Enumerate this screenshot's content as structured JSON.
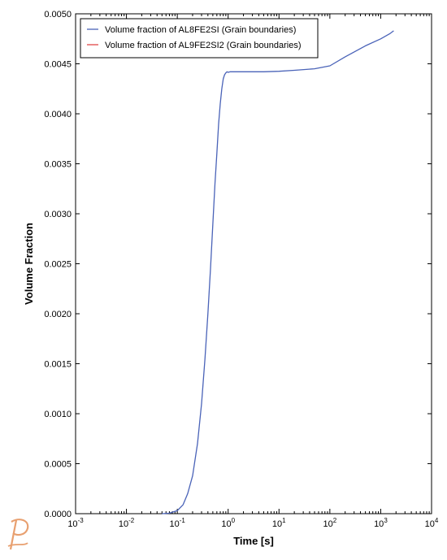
{
  "chart_data": {
    "type": "line",
    "xlabel": "Time [s]",
    "ylabel": "Volume Fraction",
    "xscale": "log",
    "xlim": [
      0.001,
      10000
    ],
    "ylim": [
      0,
      0.005
    ],
    "grid": false,
    "legend_position": "top-left",
    "x_tick_labels": [
      {
        "base": "10",
        "exp": "-3"
      },
      {
        "base": "10",
        "exp": "-2"
      },
      {
        "base": "10",
        "exp": "-1"
      },
      {
        "base": "10",
        "exp": "0"
      },
      {
        "base": "10",
        "exp": "1"
      },
      {
        "base": "10",
        "exp": "2"
      },
      {
        "base": "10",
        "exp": "3"
      },
      {
        "base": "10",
        "exp": "4"
      }
    ],
    "y_ticks": [
      0,
      0.0005,
      0.001,
      0.0015,
      0.002,
      0.0025,
      0.003,
      0.0035,
      0.004,
      0.0045,
      0.005
    ],
    "y_tick_labels": [
      "0.0000",
      "0.0005",
      "0.0010",
      "0.0015",
      "0.0020",
      "0.0025",
      "0.0030",
      "0.0035",
      "0.0040",
      "0.0045",
      "0.0050"
    ],
    "series": [
      {
        "name": "Volume fraction of AL8FE2SI (Grain boundaries)",
        "color": "#4a63b8",
        "x": [
          0.05,
          0.07,
          0.1,
          0.13,
          0.16,
          0.2,
          0.25,
          0.3,
          0.35,
          0.4,
          0.45,
          0.5,
          0.55,
          0.6,
          0.65,
          0.7,
          0.75,
          0.8,
          0.85,
          0.9,
          0.95,
          1.0,
          1.1,
          1.3,
          2,
          5,
          10,
          20,
          50,
          100,
          200,
          500,
          1000,
          1500,
          1800
        ],
        "y": [
          0,
          5e-06,
          3e-05,
          9e-05,
          0.0002,
          0.00038,
          0.0007,
          0.0011,
          0.00155,
          0.002,
          0.00245,
          0.0029,
          0.0033,
          0.0036,
          0.0039,
          0.0041,
          0.00425,
          0.00435,
          0.00439,
          0.00441,
          0.00442,
          0.004415,
          0.00442,
          0.00442,
          0.00442,
          0.00442,
          0.004425,
          0.004435,
          0.00445,
          0.00448,
          0.00457,
          0.00468,
          0.00475,
          0.0048,
          0.00483
        ]
      },
      {
        "name": "Volume fraction of AL9FE2SI2 (Grain boundaries)",
        "color": "#e04848",
        "x": [],
        "y": []
      }
    ]
  }
}
